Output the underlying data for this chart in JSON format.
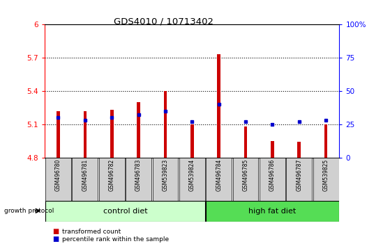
{
  "title": "GDS4010 / 10713402",
  "samples": [
    "GSM496780",
    "GSM496781",
    "GSM496782",
    "GSM496783",
    "GSM539823",
    "GSM539824",
    "GSM496784",
    "GSM496785",
    "GSM496786",
    "GSM496787",
    "GSM539825"
  ],
  "transformed_count": [
    5.22,
    5.22,
    5.23,
    5.3,
    5.4,
    5.1,
    5.73,
    5.08,
    4.95,
    4.94,
    5.1
  ],
  "percentile_rank": [
    30,
    28,
    30,
    32,
    35,
    27,
    40,
    27,
    25,
    27,
    28
  ],
  "y_min": 4.8,
  "y_max": 6.0,
  "y_ticks": [
    4.8,
    5.1,
    5.4,
    5.7,
    6.0
  ],
  "y_tick_labels": [
    "4.8",
    "5.1",
    "5.4",
    "5.7",
    "6"
  ],
  "right_y_ticks": [
    0,
    25,
    50,
    75,
    100
  ],
  "right_y_tick_labels": [
    "0",
    "25",
    "50",
    "75",
    "100%"
  ],
  "bar_color": "#cc0000",
  "dot_color": "#0000cc",
  "baseline": 4.8,
  "control_diet_indices": [
    0,
    1,
    2,
    3,
    4,
    5
  ],
  "high_fat_indices": [
    6,
    7,
    8,
    9,
    10
  ],
  "control_label": "control diet",
  "high_fat_label": "high fat diet",
  "growth_protocol_label": "growth protocol",
  "legend_red_label": "transformed count",
  "legend_blue_label": "percentile rank within the sample",
  "control_color": "#ccffcc",
  "high_fat_color": "#55dd55",
  "tick_bg_color": "#d0d0d0",
  "bar_width": 0.12
}
